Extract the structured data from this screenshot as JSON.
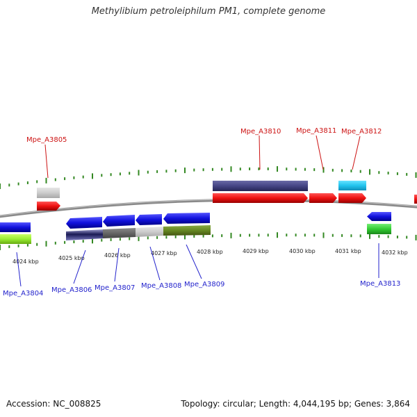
{
  "title": "Methylibium petroleiphilum PM1, complete genome",
  "footer": {
    "accession": "Accession: NC_008825",
    "info": "Topology: circular; Length: 4,044,195 bp; Genes: 3,864"
  },
  "scale": {
    "ticks": [
      "4024 kbp",
      "4025 kbp",
      "4026 kbp",
      "4027 kbp",
      "4028 kbp",
      "4029 kbp",
      "4030 kbp",
      "4031 kbp",
      "4032 kbp"
    ]
  },
  "genes": {
    "top": [
      "Mpe_A3805",
      "Mpe_A3810",
      "Mpe_A3811",
      "Mpe_A3812"
    ],
    "bottom": [
      "Mpe_A3804",
      "Mpe_A3806",
      "Mpe_A3807",
      "Mpe_A3808",
      "Mpe_A3809",
      "Mpe_A3813"
    ]
  },
  "colors": {
    "forward_gene": "#ee1111",
    "reverse_gene": "#1111dd",
    "forward_label": "#cc1111",
    "reverse_label": "#2222cc",
    "backbone": "#888888",
    "tick": "#338822"
  }
}
